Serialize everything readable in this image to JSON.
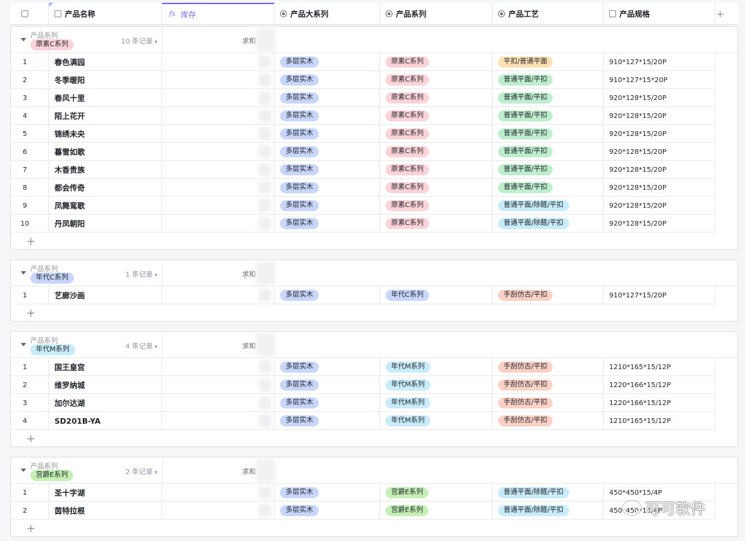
{
  "columns": [
    {
      "label": "产品名称",
      "icon": "text-field-icon"
    },
    {
      "label": "库存",
      "icon": "formula-icon"
    },
    {
      "label": "产品大系列",
      "icon": "single-select-icon"
    },
    {
      "label": "产品系列",
      "icon": "single-select-icon"
    },
    {
      "label": "产品工艺",
      "icon": "single-select-icon"
    },
    {
      "label": "产品规格",
      "icon": "text-field-icon"
    }
  ],
  "header": {
    "formula_glyph": "fx",
    "add_column": "+"
  },
  "group_label": "产品系列",
  "sum_label": "求和",
  "add_row": "+",
  "colors": {
    "accent": "#7b67ee"
  },
  "groups": [
    {
      "tag": "原素C系列",
      "tag_color": "t-pink",
      "count": "10 条记录",
      "rows": [
        {
          "n": "1",
          "name": "春色满园",
          "major": "多层实木",
          "series": "原素C系列",
          "craft": "平扣/普通平面",
          "craft_color": "t-orange",
          "spec": "910*127*15/20P"
        },
        {
          "n": "2",
          "name": "冬季暖阳",
          "major": "多层实木",
          "series": "原素C系列",
          "craft": "普通平面/平扣",
          "craft_color": "t-green",
          "spec": "910*127*15*20P"
        },
        {
          "n": "3",
          "name": "春风十里",
          "major": "多层实木",
          "series": "原素C系列",
          "craft": "普通平面/平扣",
          "craft_color": "t-green",
          "spec": "920*128*15/20P"
        },
        {
          "n": "4",
          "name": "陌上花开",
          "major": "多层实木",
          "series": "原素C系列",
          "craft": "普通平面/平扣",
          "craft_color": "t-green",
          "spec": "920*128*15/20P"
        },
        {
          "n": "5",
          "name": "锦绣未央",
          "major": "多层实木",
          "series": "原素C系列",
          "craft": "普通平面/平扣",
          "craft_color": "t-green",
          "spec": "920*128*15/20P"
        },
        {
          "n": "6",
          "name": "暮雪如歌",
          "major": "多层实木",
          "series": "原素C系列",
          "craft": "普通平面/平扣",
          "craft_color": "t-green",
          "spec": "920*128*15/20P"
        },
        {
          "n": "7",
          "name": "木香贵族",
          "major": "多层实木",
          "series": "原素C系列",
          "craft": "普通平面/平扣",
          "craft_color": "t-green",
          "spec": "920*128*15/20P"
        },
        {
          "n": "8",
          "name": "都会传奇",
          "major": "多层实木",
          "series": "原素C系列",
          "craft": "普通平面/平扣",
          "craft_color": "t-green",
          "spec": "920*128*15/20P"
        },
        {
          "n": "9",
          "name": "凤舞鸾歌",
          "major": "多层实木",
          "series": "原素C系列",
          "craft": "普通平面/除醛/平扣",
          "craft_color": "t-cyan",
          "spec": "920*128*15/20P"
        },
        {
          "n": "10",
          "name": "丹凤朝阳",
          "major": "多层实木",
          "series": "原素C系列",
          "craft": "普通平面/除醛/平扣",
          "craft_color": "t-cyan",
          "spec": "920*128*15/20P"
        }
      ]
    },
    {
      "tag": "年代C系列",
      "tag_color": "t-blue",
      "count": "1 条记录",
      "rows": [
        {
          "n": "1",
          "name": "艺廊沙画",
          "major": "多层实木",
          "series": "年代C系列",
          "craft": "手刮仿古/平扣",
          "craft_color": "t-salmon",
          "spec": "910*127*15/20P"
        }
      ]
    },
    {
      "tag": "年代M系列",
      "tag_color": "t-cyan",
      "count": "4 条记录",
      "rows": [
        {
          "n": "1",
          "name": "国王皇宫",
          "major": "多层实木",
          "series": "年代M系列",
          "craft": "手刮仿古/平扣",
          "craft_color": "t-salmon",
          "spec": "1210*165*15/12P"
        },
        {
          "n": "2",
          "name": "维罗纳城",
          "major": "多层实木",
          "series": "年代M系列",
          "craft": "手刮仿古/平扣",
          "craft_color": "t-salmon",
          "spec": "1220*166*15/12P"
        },
        {
          "n": "3",
          "name": "加尔达湖",
          "major": "多层实木",
          "series": "年代M系列",
          "craft": "手刮仿古/平扣",
          "craft_color": "t-salmon",
          "spec": "1220*166*15/12P"
        },
        {
          "n": "4",
          "name": "SD201B-YA",
          "major": "多层实木",
          "series": "年代M系列",
          "craft": "手刮仿古/平扣",
          "craft_color": "t-salmon",
          "spec": "1210*165*15/12P"
        }
      ]
    },
    {
      "tag": "宫爵E系列",
      "tag_color": "t-lime",
      "count": "2 条记录",
      "rows": [
        {
          "n": "1",
          "name": "圣十字湖",
          "major": "多层实木",
          "series": "宫爵E系列",
          "craft": "普通平面/除醛/平扣",
          "craft_color": "t-cyan",
          "spec": "450*450*15/4P"
        },
        {
          "n": "2",
          "name": "茵特拉根",
          "major": "多层实木",
          "series": "宫爵E系列",
          "craft": "普通平面/除醛/平扣",
          "craft_color": "t-cyan",
          "spec": "450*450*15/4P"
        }
      ]
    }
  ],
  "watermark": "可可软件"
}
